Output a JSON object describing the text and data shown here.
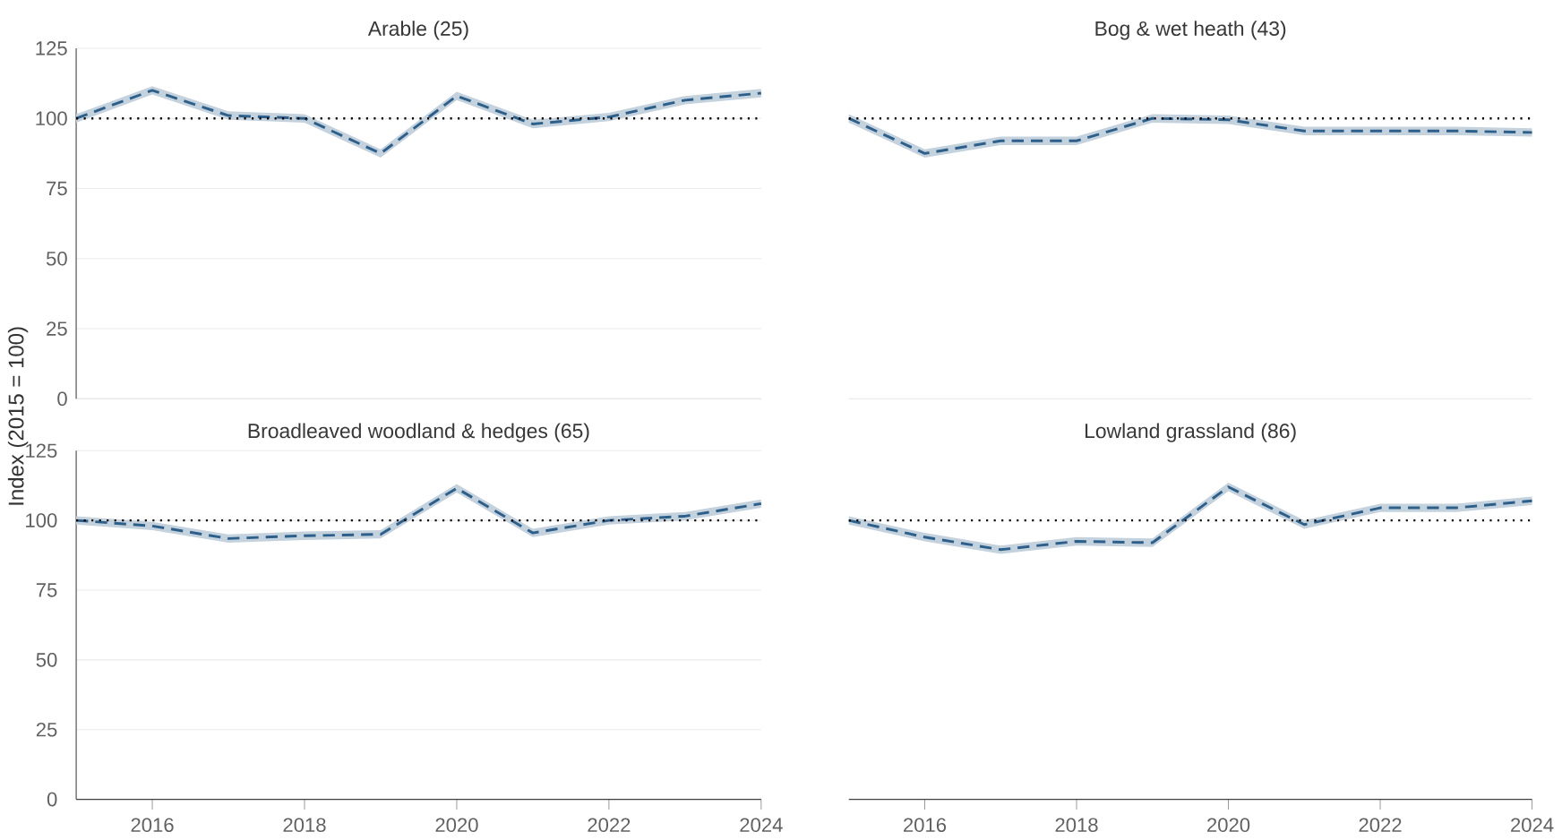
{
  "chart_data": [
    {
      "type": "line",
      "title": "Arable (25)",
      "ylabel": "Index (2015 = 100)",
      "x": [
        2015,
        2016,
        2017,
        2018,
        2019,
        2020,
        2021,
        2022,
        2023,
        2024
      ],
      "xlim": [
        2015,
        2024
      ],
      "xticks": [
        2016,
        2018,
        2020,
        2022,
        2024
      ],
      "ylim": [
        0,
        125
      ],
      "yticks": [
        0,
        25,
        50,
        75,
        100,
        125
      ],
      "grid": "y",
      "tick_labels": "y",
      "line_style": "dashed",
      "series": [
        {
          "color": "#2c5f8a",
          "values": [
            100,
            110,
            101,
            100,
            87.5,
            108,
            98,
            100.5,
            106.5,
            109
          ],
          "lower": [
            98.5,
            108.5,
            99.5,
            98.5,
            86,
            106.5,
            96.5,
            99,
            105,
            107.5
          ],
          "upper": [
            101.5,
            111.5,
            102.5,
            101.5,
            89,
            109.5,
            99.5,
            102,
            108,
            110.5
          ]
        }
      ],
      "ref_lines": [
        {
          "axis": "y",
          "value": 100,
          "line_style": "dotted",
          "color": "#000000"
        }
      ]
    },
    {
      "type": "line",
      "title": "Bog & wet heath (43)",
      "x": [
        2015,
        2016,
        2017,
        2018,
        2019,
        2020,
        2021,
        2022,
        2023,
        2024
      ],
      "xlim": [
        2015,
        2024
      ],
      "xticks": [
        2016,
        2018,
        2020,
        2022,
        2024
      ],
      "ylim": [
        0,
        125
      ],
      "yticks": [
        0,
        25,
        50,
        75,
        100,
        125
      ],
      "grid": "y",
      "tick_labels": false,
      "line_style": "dashed",
      "series": [
        {
          "color": "#2c5f8a",
          "values": [
            100,
            87.5,
            92,
            92,
            100,
            99.5,
            95.5,
            95.5,
            95.5,
            95
          ],
          "lower": [
            98.5,
            86,
            90.5,
            90.5,
            98.5,
            98,
            94,
            94,
            94,
            93.5
          ],
          "upper": [
            101.5,
            89,
            93.5,
            93.5,
            101.5,
            101,
            97,
            97,
            97,
            96.5
          ]
        }
      ],
      "ref_lines": [
        {
          "axis": "y",
          "value": 100,
          "line_style": "dotted",
          "color": "#000000"
        }
      ]
    },
    {
      "type": "line",
      "title": "Broadleaved woodland & hedges (65)",
      "x": [
        2015,
        2016,
        2017,
        2018,
        2019,
        2020,
        2021,
        2022,
        2023,
        2024
      ],
      "xlim": [
        2015,
        2024
      ],
      "xticks": [
        2016,
        2018,
        2020,
        2022,
        2024
      ],
      "ylim": [
        0,
        125
      ],
      "yticks": [
        0,
        25,
        50,
        75,
        100,
        125
      ],
      "grid": "y",
      "line_style": "dashed",
      "series": [
        {
          "color": "#2c5f8a",
          "values": [
            100,
            98,
            93.5,
            94.5,
            95,
            111.5,
            95.5,
            100,
            101.5,
            106
          ],
          "lower": [
            98.5,
            96.5,
            92,
            93,
            93.5,
            110,
            94,
            98.5,
            100,
            104.5
          ],
          "upper": [
            101.5,
            99.5,
            95,
            96,
            96.5,
            113,
            97,
            101.5,
            103,
            107.5
          ]
        }
      ],
      "ref_lines": [
        {
          "axis": "y",
          "value": 100,
          "line_style": "dotted",
          "color": "#000000"
        }
      ]
    },
    {
      "type": "line",
      "title": "Lowland grassland (86)",
      "x": [
        2015,
        2016,
        2017,
        2018,
        2019,
        2020,
        2021,
        2022,
        2023,
        2024
      ],
      "xlim": [
        2015,
        2024
      ],
      "xticks": [
        2016,
        2018,
        2020,
        2022,
        2024
      ],
      "ylim": [
        0,
        125
      ],
      "yticks": [
        0,
        25,
        50,
        75,
        100,
        125
      ],
      "grid": "y",
      "tick_labels": "x",
      "line_style": "dashed",
      "series": [
        {
          "color": "#2c5f8a",
          "values": [
            100,
            94,
            89.5,
            92.5,
            92,
            112,
            98.5,
            104.5,
            104.5,
            107
          ],
          "lower": [
            98.5,
            92.5,
            88,
            91,
            90.5,
            110.5,
            97,
            103,
            103,
            105.5
          ],
          "upper": [
            101.5,
            95.5,
            91,
            94,
            93.5,
            113.5,
            100,
            106,
            106,
            108.5
          ]
        }
      ],
      "ref_lines": [
        {
          "axis": "y",
          "value": 100,
          "line_style": "dotted",
          "color": "#000000"
        }
      ]
    }
  ]
}
